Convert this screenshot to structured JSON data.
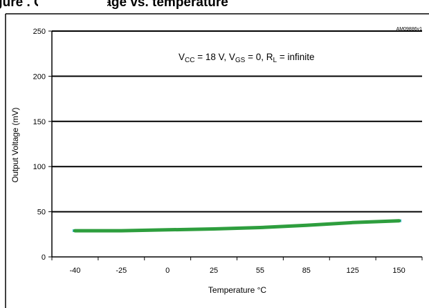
{
  "header": {
    "title_fragment": "gure            . Output voltage vs. temperature"
  },
  "chart_data": {
    "type": "line",
    "id_label": "AM09886v1",
    "annotation": {
      "parts": [
        {
          "t": "V",
          "sub": false
        },
        {
          "t": "CC",
          "sub": true
        },
        {
          "t": " = 18 V, V",
          "sub": false
        },
        {
          "t": "GS",
          "sub": true
        },
        {
          "t": " = 0, R",
          "sub": false
        },
        {
          "t": "L",
          "sub": true
        },
        {
          "t": " = infinite",
          "sub": false
        }
      ]
    },
    "xlabel": "Temperature °C",
    "ylabel": "Output Voltage (mV)",
    "categories": [
      "-40",
      "-25",
      "0",
      "25",
      "55",
      "85",
      "125",
      "150"
    ],
    "y_ticks": [
      "0",
      "50",
      "100",
      "150",
      "200",
      "250"
    ],
    "ylim": [
      0,
      250
    ],
    "grid": "horizontal",
    "series": [
      {
        "values": [
          29,
          29,
          30,
          31,
          32.5,
          35,
          38,
          40
        ],
        "color": "#2e9e3e",
        "marker_color": "#36b8c9"
      }
    ]
  }
}
